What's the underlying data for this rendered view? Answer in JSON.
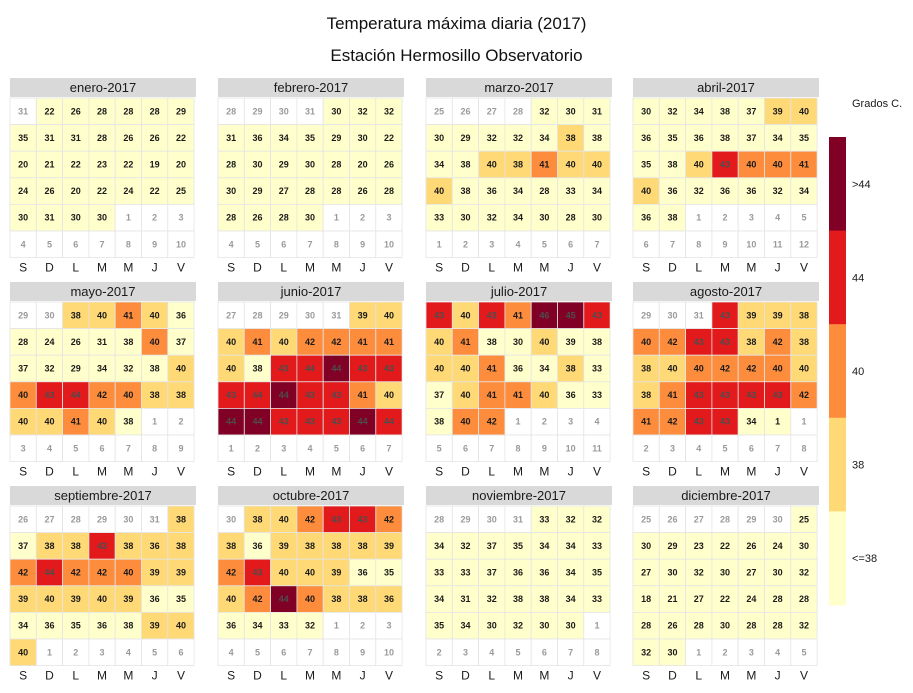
{
  "title": "Temperatura máxima diaria (2017)",
  "subtitle": "Estación Hermosillo Observatorio",
  "chart_data": {
    "type": "heatmap",
    "title": "Temperatura máxima diaria (2017)",
    "subtitle": "Estación Hermosillo Observatorio",
    "weekday_labels": [
      "S",
      "D",
      "L",
      "M",
      "M",
      "J",
      "V"
    ],
    "legend": {
      "title": "Grados C.",
      "placement": "right",
      "bins": [
        {
          "label": ">44",
          "color": "#800026"
        },
        {
          "label": "44",
          "color": "#e31a1c"
        },
        {
          "label": "40",
          "color": "#fd8d3c"
        },
        {
          "label": "38",
          "color": "#fed976"
        },
        {
          "label": "<=38",
          "color": "#ffffcc"
        }
      ]
    },
    "colors": {
      "c0": "#ffffcc",
      "c1": "#fed976",
      "c2": "#fd8d3c",
      "c3": "#e31a1c",
      "c4": "#800026",
      "outside": "#ffffff"
    },
    "months": [
      {
        "name": "enero-2017",
        "start": 1,
        "days": 31,
        "prev_days": 31,
        "values": [
          22,
          26,
          28,
          28,
          28,
          29,
          35,
          31,
          31,
          28,
          26,
          26,
          22,
          20,
          21,
          22,
          23,
          22,
          19,
          20,
          24,
          26,
          20,
          22,
          24,
          22,
          25,
          30,
          31,
          30,
          30
        ],
        "levels": [
          0,
          0,
          0,
          0,
          0,
          0,
          0,
          0,
          0,
          0,
          0,
          0,
          0,
          0,
          0,
          0,
          0,
          0,
          0,
          0,
          0,
          0,
          0,
          0,
          0,
          0,
          0,
          0,
          0,
          0,
          0
        ]
      },
      {
        "name": "febrero-2017",
        "start": 4,
        "days": 28,
        "prev_days": 31,
        "values": [
          30,
          32,
          32,
          31,
          36,
          34,
          35,
          29,
          30,
          22,
          28,
          30,
          29,
          30,
          28,
          20,
          26,
          30,
          29,
          27,
          28,
          28,
          26,
          28,
          28,
          26,
          28,
          30
        ],
        "levels": [
          0,
          0,
          0,
          0,
          0,
          0,
          0,
          0,
          0,
          0,
          0,
          0,
          0,
          0,
          0,
          0,
          0,
          0,
          0,
          0,
          0,
          0,
          0,
          0,
          0,
          0,
          0,
          0
        ]
      },
      {
        "name": "marzo-2017",
        "start": 4,
        "days": 31,
        "prev_days": 28,
        "values": [
          32,
          30,
          31,
          30,
          29,
          32,
          32,
          34,
          38,
          38,
          34,
          38,
          40,
          38,
          41,
          40,
          40,
          40,
          38,
          36,
          34,
          28,
          33,
          34,
          33,
          30,
          32,
          34,
          30,
          28,
          30
        ],
        "levels": [
          0,
          0,
          0,
          0,
          0,
          0,
          0,
          0,
          1,
          0,
          0,
          0,
          1,
          1,
          2,
          1,
          1,
          1,
          0,
          0,
          0,
          0,
          0,
          0,
          0,
          0,
          0,
          0,
          0,
          0,
          0
        ]
      },
      {
        "name": "abril-2017",
        "start": 0,
        "days": 30,
        "prev_days": 31,
        "values": [
          30,
          32,
          34,
          38,
          37,
          39,
          40,
          36,
          35,
          36,
          38,
          37,
          34,
          35,
          35,
          38,
          40,
          43,
          40,
          40,
          41,
          40,
          36,
          32,
          36,
          36,
          32,
          34,
          36,
          38
        ],
        "levels": [
          0,
          0,
          0,
          0,
          0,
          1,
          1,
          0,
          0,
          0,
          0,
          0,
          0,
          0,
          0,
          0,
          1,
          3,
          2,
          2,
          2,
          1,
          0,
          0,
          0,
          0,
          0,
          0,
          0,
          0
        ]
      },
      {
        "name": "mayo-2017",
        "start": 2,
        "days": 31,
        "prev_days": 30,
        "values": [
          38,
          40,
          41,
          40,
          36,
          28,
          24,
          26,
          31,
          38,
          40,
          37,
          37,
          32,
          29,
          34,
          32,
          38,
          40,
          40,
          43,
          44,
          42,
          40,
          38,
          38,
          40,
          40,
          41,
          40,
          38
        ],
        "levels": [
          1,
          1,
          2,
          1,
          0,
          0,
          0,
          0,
          0,
          0,
          2,
          0,
          0,
          0,
          0,
          0,
          0,
          0,
          1,
          2,
          3,
          3,
          2,
          2,
          1,
          1,
          1,
          1,
          2,
          1,
          0
        ]
      },
      {
        "name": "junio-2017",
        "start": 5,
        "days": 30,
        "prev_days": 31,
        "values": [
          39,
          40,
          40,
          41,
          40,
          42,
          42,
          41,
          41,
          40,
          38,
          43,
          44,
          44,
          43,
          43,
          43,
          44,
          44,
          43,
          43,
          41,
          40,
          44,
          44,
          43,
          43,
          43,
          44,
          44
        ],
        "levels": [
          1,
          1,
          1,
          2,
          1,
          2,
          2,
          2,
          2,
          1,
          0,
          3,
          3,
          4,
          3,
          3,
          3,
          3,
          4,
          3,
          3,
          2,
          1,
          4,
          4,
          3,
          3,
          3,
          4,
          3
        ]
      },
      {
        "name": "julio-2017",
        "start": 0,
        "days": 31,
        "prev_days": 30,
        "values": [
          43,
          40,
          43,
          41,
          46,
          45,
          43,
          40,
          41,
          38,
          30,
          40,
          39,
          38,
          40,
          40,
          41,
          36,
          34,
          38,
          33,
          37,
          40,
          41,
          41,
          40,
          36,
          33,
          38,
          40,
          42
        ],
        "levels": [
          3,
          1,
          3,
          2,
          4,
          4,
          3,
          1,
          2,
          0,
          0,
          1,
          0,
          0,
          1,
          1,
          2,
          0,
          0,
          1,
          0,
          0,
          1,
          2,
          2,
          1,
          0,
          0,
          0,
          2,
          2
        ]
      },
      {
        "name": "agosto-2017",
        "start": 3,
        "days": 31,
        "prev_days": 31,
        "values": [
          43,
          39,
          39,
          38,
          40,
          42,
          43,
          43,
          38,
          42,
          38,
          38,
          40,
          40,
          42,
          42,
          40,
          40,
          38,
          41,
          43,
          43,
          43,
          43,
          42,
          41,
          42,
          43,
          43,
          34,
          1
        ],
        "levels": [
          3,
          1,
          1,
          1,
          2,
          2,
          3,
          3,
          1,
          2,
          1,
          1,
          1,
          2,
          2,
          2,
          2,
          1,
          1,
          2,
          3,
          3,
          3,
          3,
          2,
          2,
          2,
          3,
          3,
          0,
          0
        ]
      },
      {
        "name": "septiembre-2017",
        "start": 6,
        "days": 30,
        "prev_days": 31,
        "values": [
          38,
          37,
          38,
          38,
          43,
          38,
          36,
          38,
          42,
          44,
          42,
          42,
          40,
          39,
          39,
          39,
          40,
          39,
          40,
          39,
          36,
          35,
          34,
          36,
          35,
          36,
          38,
          39,
          40,
          40
        ],
        "levels": [
          1,
          0,
          1,
          1,
          3,
          1,
          1,
          1,
          2,
          3,
          2,
          2,
          2,
          1,
          1,
          1,
          1,
          1,
          1,
          1,
          0,
          0,
          0,
          0,
          0,
          0,
          0,
          1,
          1,
          1
        ]
      },
      {
        "name": "octubre-2017",
        "start": 1,
        "days": 31,
        "prev_days": 30,
        "values": [
          38,
          40,
          42,
          43,
          43,
          42,
          38,
          36,
          39,
          38,
          38,
          38,
          39,
          42,
          43,
          40,
          40,
          39,
          36,
          35,
          40,
          42,
          44,
          40,
          38,
          38,
          36,
          36,
          34,
          33,
          32
        ],
        "levels": [
          1,
          1,
          2,
          3,
          3,
          2,
          1,
          0,
          1,
          1,
          1,
          1,
          1,
          2,
          3,
          1,
          1,
          1,
          0,
          0,
          1,
          2,
          4,
          2,
          1,
          1,
          1,
          0,
          0,
          0,
          0
        ]
      },
      {
        "name": "noviembre-2017",
        "start": 4,
        "days": 30,
        "prev_days": 31,
        "values": [
          33,
          32,
          32,
          34,
          32,
          37,
          35,
          34,
          34,
          33,
          33,
          33,
          37,
          36,
          36,
          34,
          35,
          34,
          31,
          32,
          38,
          38,
          34,
          33,
          35,
          34,
          30,
          32,
          30,
          30
        ],
        "levels": [
          0,
          0,
          0,
          0,
          0,
          0,
          0,
          0,
          0,
          0,
          0,
          0,
          0,
          0,
          0,
          0,
          0,
          0,
          0,
          0,
          0,
          0,
          0,
          0,
          0,
          0,
          0,
          0,
          0,
          0
        ]
      },
      {
        "name": "diciembre-2017",
        "start": 6,
        "days": 31,
        "prev_days": 30,
        "values": [
          25,
          30,
          29,
          23,
          22,
          26,
          24,
          30,
          27,
          30,
          32,
          30,
          27,
          30,
          32,
          18,
          21,
          27,
          22,
          24,
          28,
          28,
          28,
          26,
          28,
          30,
          28,
          28,
          32,
          32,
          30
        ],
        "levels": [
          0,
          0,
          0,
          0,
          0,
          0,
          0,
          0,
          0,
          0,
          0,
          0,
          0,
          0,
          0,
          0,
          0,
          0,
          0,
          0,
          0,
          0,
          0,
          0,
          0,
          0,
          0,
          0,
          0,
          0,
          0
        ]
      }
    ]
  }
}
